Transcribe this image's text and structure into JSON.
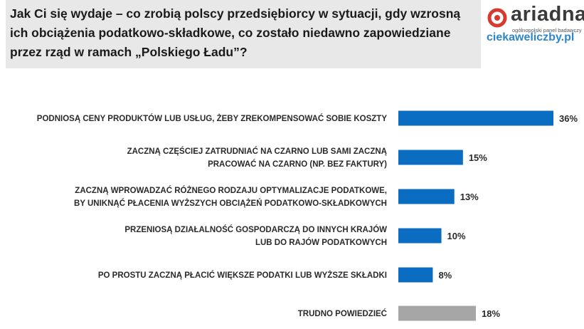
{
  "title": "Jak Ci się wydaje – co zrobią polscy przedsiębiorcy w sytuacji, gdy wzrosną\nich obciążenia podatkowo-składkowe, co zostało niedawno zapowiedziane\nprzez rząd w ramach „Polskiego Ładu”?",
  "logo": {
    "name": "ariadna",
    "tagline": "ogólnopolski panel badawczy",
    "brand_color": "#d63a2f"
  },
  "site_url": "ciekaweliczby.pl",
  "colors": {
    "bar_primary": "#0a6dc2",
    "bar_other": "#a6a6a6",
    "title_bg": "#e8e8e8"
  },
  "chart_data": {
    "type": "bar",
    "orientation": "horizontal",
    "categories": [
      [
        "PODNIOSĄ CENY PRODUKTÓW LUB USŁUG, ŻEBY ZREKOMPENSOWAĆ SOBIE KOSZTY"
      ],
      [
        "ZACZNĄ CZĘŚCIEJ ZATRUDNIAĆ NA CZARNO LUB SAMI ZACZNĄ",
        "PRACOWAĆ NA CZARNO (NP. BEZ FAKTURY)"
      ],
      [
        "ZACZNĄ WPROWADZAĆ RÓŻNEGO RODZAJU OPTYMALIZACJE PODATKOWE,",
        "BY UNIKNĄĆ PŁACENIA WYŻSZYCH OBCIĄŻEŃ PODATKOWO-SKŁADKOWYCH"
      ],
      [
        "PRZENIOSĄ DZIAŁALNOŚĆ GOSPODARCZĄ DO INNYCH KRAJÓW",
        "LUB DO RAJÓW PODATKOWYCH"
      ],
      [
        "PO PROSTU ZACZNĄ PŁACIĆ WIĘKSZE PODATKI LUB WYŻSZE SKŁADKI"
      ],
      [
        "TRUDNO POWIEDZIEĆ"
      ]
    ],
    "values": [
      36,
      15,
      13,
      10,
      8,
      18
    ],
    "value_labels": [
      "36%",
      "15%",
      "13%",
      "10%",
      "8%",
      "18%"
    ],
    "bar_colors": [
      "#0a6dc2",
      "#0a6dc2",
      "#0a6dc2",
      "#0a6dc2",
      "#0a6dc2",
      "#a6a6a6"
    ],
    "xlim": [
      0,
      36
    ],
    "grid": false,
    "legend": "none"
  }
}
